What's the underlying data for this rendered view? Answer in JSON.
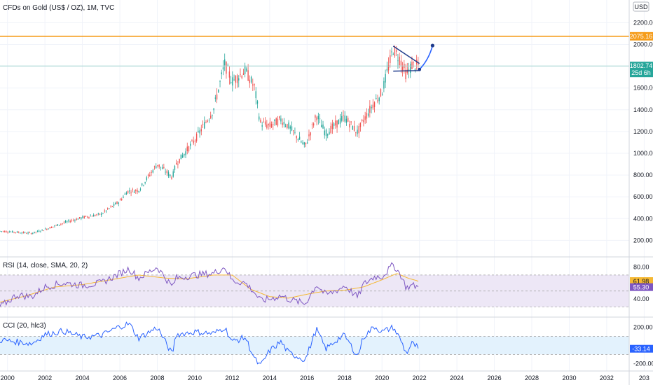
{
  "main_title": "CFDs on Gold (US$ / OZ), 1M, TVC",
  "currency_badge": "USD",
  "colors": {
    "up": "#26a69a",
    "down": "#ef5350",
    "grid": "#f0f3fa",
    "resistance": "#f59c1a",
    "support_line": "#9fd4d0",
    "rsi_line": "#7e57c2",
    "rsi_ma": "#f5b833",
    "rsi_band": "#ede7f6",
    "cci_line": "#2962ff",
    "cci_band": "#e3f2fd",
    "drawing": "#1e3a8a"
  },
  "price_tags": {
    "resistance": "2075.16",
    "last": "1802.74",
    "countdown": "25d 6h",
    "rsi_value": "55.30",
    "rsi_ma_value": "61.98",
    "cci_value": "-33.14"
  },
  "rsi_title": "RSI (14, close, SMA, 20, 2)",
  "cci_title": "CCI (20, hlc3)",
  "chart_data": [
    {
      "type": "candlestick",
      "name": "price",
      "y_ticks": [
        "200.00",
        "400.00",
        "600.00",
        "800.00",
        "1000.00",
        "1200.00",
        "1400.00",
        "1600.00",
        "1800.00",
        "2000.00",
        "2200.00"
      ],
      "ylim": [
        80,
        2280
      ],
      "x_ticks": [
        "2000",
        "2002",
        "2004",
        "2006",
        "2008",
        "2010",
        "2012",
        "2014",
        "2016",
        "2018",
        "2020",
        "2022",
        "2024",
        "2026",
        "2028",
        "2030",
        "2032",
        "203"
      ],
      "xlim": [
        1999.6,
        2033.2
      ],
      "horizontal_lines": [
        2075.16,
        1802.74
      ],
      "anchors": [
        [
          1999.6,
          285
        ],
        [
          2000.5,
          275
        ],
        [
          2001.3,
          265
        ],
        [
          2002.0,
          300
        ],
        [
          2003.0,
          360
        ],
        [
          2004.0,
          410
        ],
        [
          2005.0,
          440
        ],
        [
          2006.0,
          560
        ],
        [
          2006.4,
          650
        ],
        [
          2007.0,
          660
        ],
        [
          2008.0,
          900
        ],
        [
          2008.8,
          780
        ],
        [
          2009.0,
          900
        ],
        [
          2010.0,
          1120
        ],
        [
          2011.0,
          1400
        ],
        [
          2011.6,
          1820
        ],
        [
          2012.0,
          1660
        ],
        [
          2012.7,
          1760
        ],
        [
          2013.2,
          1600
        ],
        [
          2013.5,
          1280
        ],
        [
          2014.0,
          1250
        ],
        [
          2014.6,
          1310
        ],
        [
          2015.0,
          1250
        ],
        [
          2015.9,
          1060
        ],
        [
          2016.5,
          1350
        ],
        [
          2017.0,
          1180
        ],
        [
          2017.7,
          1290
        ],
        [
          2018.0,
          1330
        ],
        [
          2018.7,
          1190
        ],
        [
          2019.0,
          1300
        ],
        [
          2019.6,
          1470
        ],
        [
          2020.0,
          1560
        ],
        [
          2020.6,
          1960
        ],
        [
          2021.0,
          1850
        ],
        [
          2021.3,
          1720
        ],
        [
          2021.6,
          1810
        ],
        [
          2022.0,
          1800
        ]
      ],
      "drawings": {
        "triangle_upper": [
          [
            2020.6,
            1985
          ],
          [
            2022.0,
            1825
          ]
        ],
        "triangle_lower": [
          [
            2020.6,
            1755
          ],
          [
            2022.0,
            1760
          ]
        ],
        "projection_curve": [
          [
            2022.0,
            1770
          ],
          [
            2022.5,
            1860
          ],
          [
            2022.7,
            1990
          ]
        ]
      }
    },
    {
      "type": "line",
      "name": "RSI",
      "y_ticks": [
        "80.00",
        "40.00"
      ],
      "ylim": [
        20,
        90
      ],
      "band": [
        30,
        70
      ],
      "anchors": [
        [
          1999.6,
          30
        ],
        [
          2000.5,
          45
        ],
        [
          2001.3,
          43
        ],
        [
          2002.0,
          55
        ],
        [
          2003.0,
          60
        ],
        [
          2004.0,
          57
        ],
        [
          2005.0,
          60
        ],
        [
          2006.0,
          72
        ],
        [
          2006.5,
          78
        ],
        [
          2007.0,
          66
        ],
        [
          2008.0,
          80
        ],
        [
          2008.8,
          55
        ],
        [
          2009.0,
          66
        ],
        [
          2010.0,
          70
        ],
        [
          2011.0,
          72
        ],
        [
          2011.6,
          80
        ],
        [
          2012.0,
          63
        ],
        [
          2012.7,
          60
        ],
        [
          2013.2,
          48
        ],
        [
          2013.5,
          38
        ],
        [
          2014.0,
          40
        ],
        [
          2014.6,
          44
        ],
        [
          2015.0,
          40
        ],
        [
          2015.9,
          34
        ],
        [
          2016.5,
          58
        ],
        [
          2017.0,
          45
        ],
        [
          2017.7,
          52
        ],
        [
          2018.0,
          57
        ],
        [
          2018.7,
          42
        ],
        [
          2019.0,
          58
        ],
        [
          2019.6,
          68
        ],
        [
          2020.0,
          68
        ],
        [
          2020.6,
          83
        ],
        [
          2021.0,
          70
        ],
        [
          2021.3,
          54
        ],
        [
          2021.6,
          57
        ],
        [
          2022.0,
          55.3
        ]
      ],
      "ma_anchors": [
        [
          1999.6,
          36
        ],
        [
          2001.0,
          44
        ],
        [
          2002.5,
          55
        ],
        [
          2004.0,
          58
        ],
        [
          2005.5,
          64
        ],
        [
          2007.0,
          70
        ],
        [
          2008.5,
          66
        ],
        [
          2009.5,
          65
        ],
        [
          2011.0,
          70
        ],
        [
          2012.0,
          70
        ],
        [
          2013.0,
          52
        ],
        [
          2014.0,
          43
        ],
        [
          2015.0,
          41
        ],
        [
          2016.0,
          46
        ],
        [
          2017.0,
          50
        ],
        [
          2018.0,
          51
        ],
        [
          2019.0,
          55
        ],
        [
          2020.0,
          64
        ],
        [
          2020.8,
          72
        ],
        [
          2021.4,
          66
        ],
        [
          2022.0,
          61.98
        ]
      ]
    },
    {
      "type": "line",
      "name": "CCI",
      "y_ticks": [
        "200.00",
        "-200.00"
      ],
      "ylim": [
        -260,
        290
      ],
      "band": [
        -100,
        100
      ],
      "anchors": [
        [
          1999.6,
          60
        ],
        [
          2000.5,
          40
        ],
        [
          2001.3,
          20
        ],
        [
          2002.0,
          120
        ],
        [
          2003.0,
          160
        ],
        [
          2004.0,
          90
        ],
        [
          2005.0,
          110
        ],
        [
          2006.0,
          210
        ],
        [
          2006.5,
          240
        ],
        [
          2007.0,
          80
        ],
        [
          2008.0,
          200
        ],
        [
          2008.8,
          -100
        ],
        [
          2009.0,
          120
        ],
        [
          2010.0,
          150
        ],
        [
          2011.0,
          130
        ],
        [
          2011.6,
          200
        ],
        [
          2012.0,
          40
        ],
        [
          2012.7,
          90
        ],
        [
          2013.2,
          -150
        ],
        [
          2013.5,
          -230
        ],
        [
          2014.0,
          -60
        ],
        [
          2014.6,
          40
        ],
        [
          2015.0,
          -80
        ],
        [
          2015.9,
          -160
        ],
        [
          2016.5,
          180
        ],
        [
          2017.0,
          -40
        ],
        [
          2017.7,
          80
        ],
        [
          2018.0,
          110
        ],
        [
          2018.7,
          -120
        ],
        [
          2019.0,
          90
        ],
        [
          2019.6,
          210
        ],
        [
          2020.0,
          150
        ],
        [
          2020.6,
          200
        ],
        [
          2021.0,
          60
        ],
        [
          2021.3,
          -90
        ],
        [
          2021.6,
          20
        ],
        [
          2022.0,
          -33.14
        ]
      ]
    }
  ]
}
